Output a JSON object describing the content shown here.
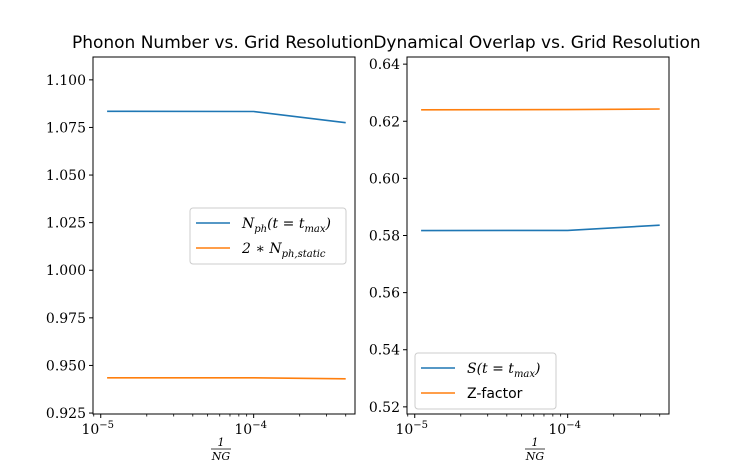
{
  "chart_data": [
    {
      "type": "line",
      "title": "Phonon Number vs. Grid Resolution",
      "xscale": "log",
      "xlabel": {
        "numerator": "1",
        "denominator": "NG"
      },
      "xlim": [
        8.9e-06,
        0.00046
      ],
      "ylim": [
        0.9245,
        1.112
      ],
      "xticks": [
        {
          "value": 1e-05,
          "base": "10",
          "exp": "−5"
        },
        {
          "value": 0.0001,
          "base": "10",
          "exp": "−4"
        }
      ],
      "yticks": [
        {
          "value": 0.925,
          "label": "0.925"
        },
        {
          "value": 0.95,
          "label": "0.950"
        },
        {
          "value": 0.975,
          "label": "0.975"
        },
        {
          "value": 1.0,
          "label": "1.000"
        },
        {
          "value": 1.025,
          "label": "1.025"
        },
        {
          "value": 1.05,
          "label": "1.050"
        },
        {
          "value": 1.075,
          "label": "1.075"
        },
        {
          "value": 1.1,
          "label": "1.100"
        }
      ],
      "legend": "center-right",
      "series": [
        {
          "name": "N_ph(t = t_max)",
          "legend_main": "N",
          "legend_sub": "ph",
          "legend_rest": "(t = t",
          "legend_sub2": "max",
          "legend_end": ")",
          "color": "#1f77b4",
          "x": [
            1.1e-05,
            0.0001,
            0.0004
          ],
          "y": [
            1.0835,
            1.0834,
            1.0775
          ]
        },
        {
          "name": "2 * N_ph,static",
          "legend_main": "2 ∗ N",
          "legend_sub": "ph,static",
          "legend_rest": "",
          "legend_sub2": "",
          "legend_end": "",
          "color": "#ff7f0e",
          "x": [
            1.1e-05,
            0.0001,
            0.0004
          ],
          "y": [
            0.9435,
            0.9435,
            0.943
          ]
        }
      ]
    },
    {
      "type": "line",
      "title": "Dynamical Overlap vs. Grid Resolution",
      "xscale": "log",
      "xlabel": {
        "numerator": "1",
        "denominator": "NG"
      },
      "xlim": [
        8.9e-06,
        0.00046
      ],
      "ylim": [
        0.5175,
        0.6425
      ],
      "xticks": [
        {
          "value": 1e-05,
          "base": "10",
          "exp": "−5"
        },
        {
          "value": 0.0001,
          "base": "10",
          "exp": "−4"
        }
      ],
      "yticks": [
        {
          "value": 0.52,
          "label": "0.52"
        },
        {
          "value": 0.54,
          "label": "0.54"
        },
        {
          "value": 0.56,
          "label": "0.56"
        },
        {
          "value": 0.58,
          "label": "0.58"
        },
        {
          "value": 0.6,
          "label": "0.60"
        },
        {
          "value": 0.62,
          "label": "0.62"
        },
        {
          "value": 0.64,
          "label": "0.64"
        }
      ],
      "legend": "lower-left",
      "series": [
        {
          "name": "S(t = t_max)",
          "legend_main": "S(t = t",
          "legend_sub": "max",
          "legend_rest": ")",
          "legend_sub2": "",
          "legend_end": "",
          "color": "#1f77b4",
          "x": [
            1.1e-05,
            0.0001,
            0.0004
          ],
          "y": [
            0.5817,
            0.5818,
            0.5836
          ]
        },
        {
          "name": "Z-factor",
          "legend_plain": "Z-factor",
          "color": "#ff7f0e",
          "x": [
            1.1e-05,
            0.0001,
            0.0004
          ],
          "y": [
            0.624,
            0.6241,
            0.6243
          ]
        }
      ]
    }
  ]
}
